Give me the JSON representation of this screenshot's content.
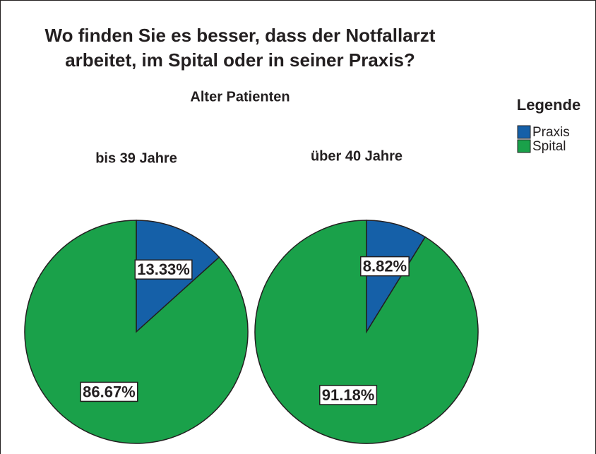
{
  "title": [
    "Wo finden Sie es besser, dass der Notfallarzt",
    "arbeitet, im Spital oder in seiner Praxis?"
  ],
  "subtitle": "Alter Patienten",
  "legend": {
    "title": "Legende"
  },
  "chart_data": [
    {
      "type": "pie",
      "title": "bis 39 Jahre",
      "categories": [
        "Praxis",
        "Spital"
      ],
      "values": [
        13.33,
        86.67
      ],
      "value_labels": [
        "13.33%",
        "86.67%"
      ],
      "colors": [
        "#1560a8",
        "#1aa14a"
      ]
    },
    {
      "type": "pie",
      "title": "über 40 Jahre",
      "categories": [
        "Praxis",
        "Spital"
      ],
      "values": [
        8.82,
        91.18
      ],
      "value_labels": [
        "8.82%",
        "91.18%"
      ],
      "colors": [
        "#1560a8",
        "#1aa14a"
      ]
    }
  ]
}
